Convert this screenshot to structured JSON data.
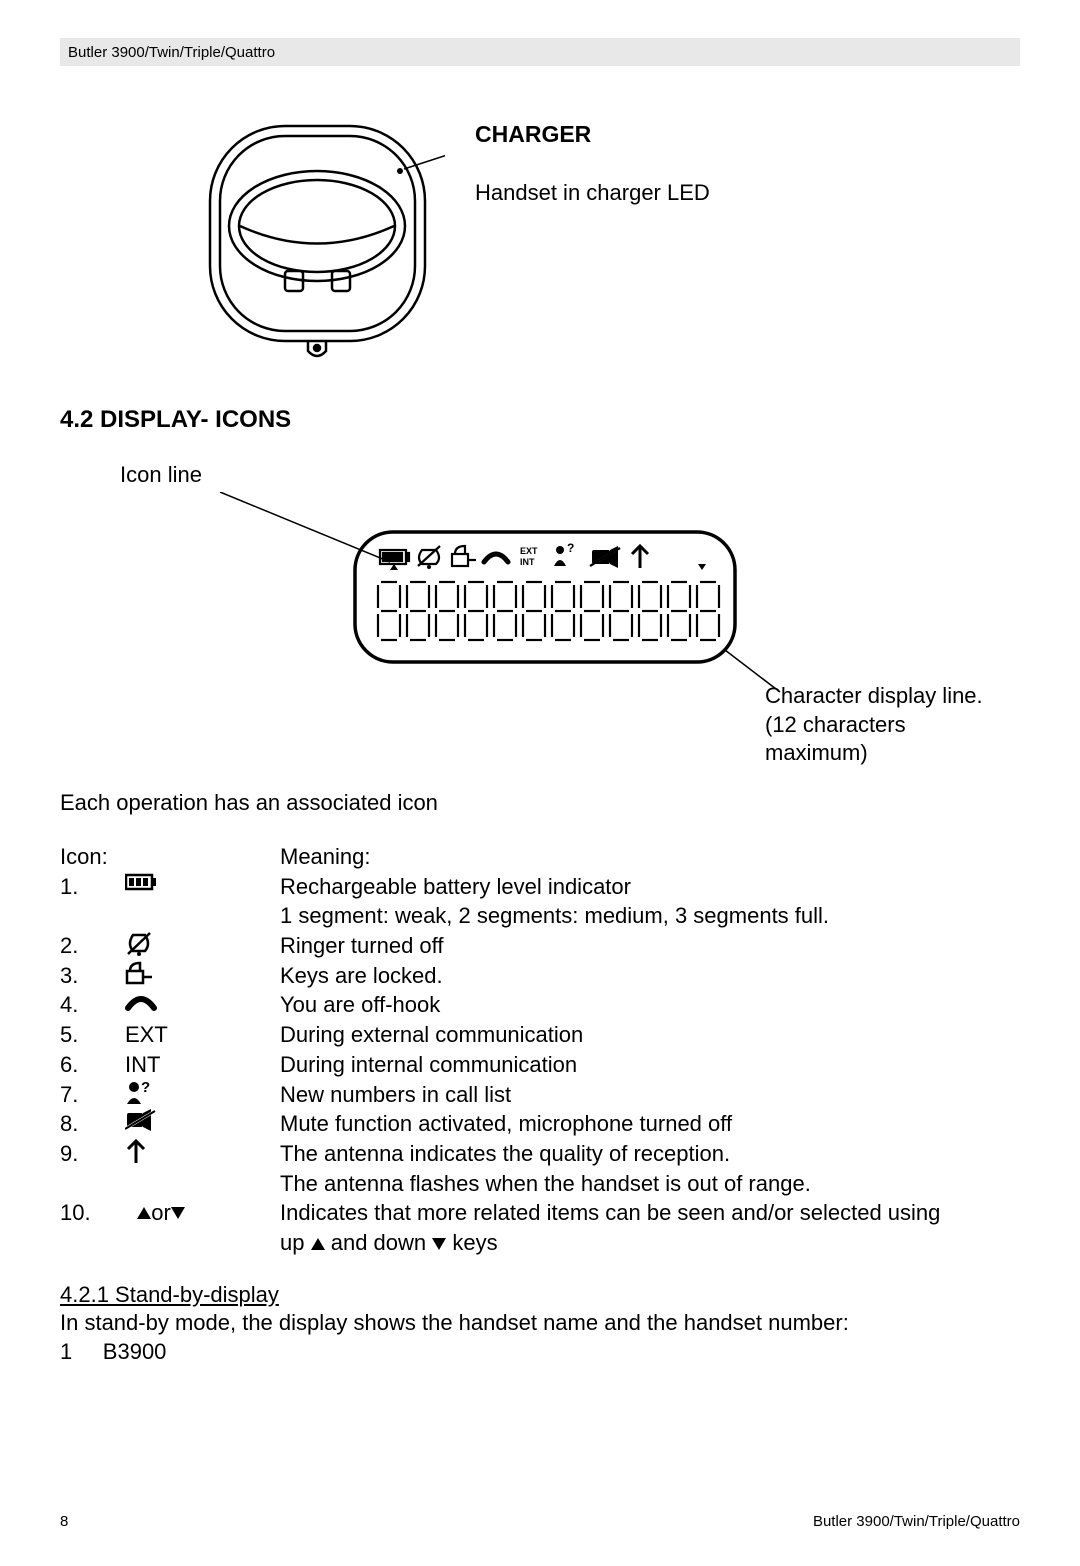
{
  "header": "Butler 3900/Twin/Triple/Quattro",
  "charger": {
    "title": "CHARGER",
    "led_label": "Handset in charger LED"
  },
  "section_4_2": {
    "heading": "4.2  DISPLAY- ICONS",
    "icon_line_label": "Icon line",
    "char_display_label_1": "Character display line.",
    "char_display_label_2": "(12 characters",
    "char_display_label_3": "maximum)",
    "intro": "Each operation has an associated icon",
    "col_icon_header": "Icon:",
    "col_meaning_header": "Meaning:",
    "rows": [
      {
        "n": "1.",
        "icon_text": "",
        "meaning1": "Rechargeable battery level indicator",
        "meaning2": "1 segment: weak, 2 segments: medium, 3 segments full."
      },
      {
        "n": "2.",
        "icon_text": "",
        "meaning1": "Ringer turned off"
      },
      {
        "n": "3.",
        "icon_text": "",
        "meaning1": "Keys are locked."
      },
      {
        "n": "4.",
        "icon_text": "",
        "meaning1": "You are off-hook"
      },
      {
        "n": "5.",
        "icon_text": "EXT",
        "meaning1": "During external communication"
      },
      {
        "n": "6.",
        "icon_text": "INT",
        "meaning1": "During internal communication"
      },
      {
        "n": "7.",
        "icon_text": "",
        "meaning1": "New numbers in call list"
      },
      {
        "n": "8.",
        "icon_text": "",
        "meaning1": "Mute function activated, microphone turned off"
      },
      {
        "n": "9.",
        "icon_text": "",
        "meaning1": "The antenna indicates the quality of reception.",
        "meaning2": "The antenna flashes when the handset is out of range."
      },
      {
        "n": "10.",
        "icon_text": "",
        "meaning1": "Indicates that more related items can be seen and/or selected using",
        "meaning2_prefix": "up ",
        "meaning2_mid": " and down ",
        "meaning2_suffix": " keys"
      }
    ],
    "or_text": " or "
  },
  "section_4_2_1": {
    "heading": "4.2.1  Stand-by-display",
    "line1": "In stand-by mode, the display shows the handset name and the handset number:",
    "line2": "1     B3900"
  },
  "footer": {
    "page": "8",
    "right": "Butler 3900/Twin/Triple/Quattro"
  },
  "colors": {
    "header_bg": "#e8e8e8",
    "text": "#000000",
    "page_bg": "#ffffff"
  }
}
